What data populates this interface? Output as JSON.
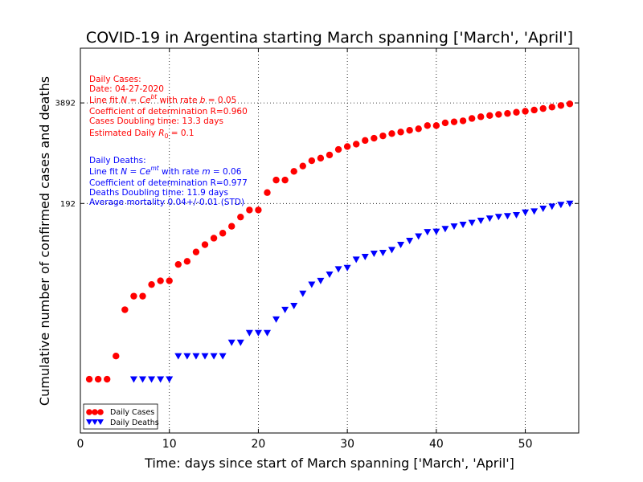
{
  "chart_data": {
    "type": "scatter",
    "title": "COVID-19 in Argentina starting March spanning ['March', 'April']",
    "xlabel": "Time: days since start of March spanning ['March', 'April']",
    "ylabel": "Cumulative number of confirmed cases and deaths",
    "xlim": [
      0,
      56
    ],
    "xticks": [
      0,
      10,
      20,
      30,
      40,
      50
    ],
    "yscale": "log",
    "ylim": [
      0.2,
      20000
    ],
    "yticks": [
      192,
      3892
    ],
    "grid": "dotted",
    "legend_position": "lower-left",
    "series": [
      {
        "name": "Daily Cases",
        "color": "#ff0000",
        "marker": "circle",
        "x": [
          1,
          2,
          3,
          4,
          5,
          6,
          7,
          8,
          9,
          10,
          11,
          12,
          13,
          14,
          15,
          16,
          17,
          18,
          19,
          20,
          21,
          22,
          23,
          24,
          25,
          26,
          27,
          28,
          29,
          30,
          31,
          32,
          33,
          34,
          35,
          36,
          37,
          38,
          39,
          40,
          41,
          42,
          43,
          44,
          45,
          46,
          47,
          48,
          49,
          50,
          51,
          52,
          53,
          54,
          55
        ],
        "y": [
          1,
          1,
          1,
          2,
          8,
          12,
          12,
          17,
          19,
          19,
          31,
          34,
          45,
          56,
          68,
          79,
          97,
          128,
          158,
          158,
          266,
          387,
          387,
          502,
          589,
          690,
          745,
          820,
          966,
          1054,
          1133,
          1265,
          1353,
          1451,
          1554,
          1628,
          1715,
          1795,
          1975,
          1975,
          2142,
          2208,
          2277,
          2443,
          2571,
          2669,
          2758,
          2839,
          2941,
          3031,
          3144,
          3288,
          3435,
          3607,
          3780
        ]
      },
      {
        "name": "Daily Deaths",
        "color": "#0000ff",
        "marker": "triangle-down",
        "x": [
          6,
          7,
          8,
          9,
          10,
          11,
          12,
          13,
          14,
          15,
          16,
          17,
          18,
          19,
          20,
          21,
          22,
          23,
          24,
          25,
          26,
          27,
          28,
          29,
          30,
          31,
          32,
          33,
          34,
          35,
          36,
          37,
          38,
          39,
          40,
          41,
          42,
          43,
          44,
          45,
          46,
          47,
          48,
          49,
          50,
          51,
          52,
          53,
          54,
          55
        ],
        "y": [
          1,
          1,
          1,
          1,
          1,
          2,
          2,
          2,
          2,
          2,
          2,
          3,
          3,
          4,
          4,
          4,
          6,
          8,
          9,
          13,
          17,
          19,
          23,
          27,
          28,
          36,
          39,
          43,
          44,
          48,
          56,
          63,
          72,
          82,
          83,
          90,
          97,
          102,
          108,
          115,
          123,
          129,
          132,
          136,
          147,
          152,
          165,
          176,
          185,
          192
        ]
      }
    ],
    "annotations": {
      "cases": [
        "Daily Cases:",
        "Date: 04-27-2020",
        "Line fit N = Ce^{bt}  with rate b = 0.05",
        "Coefficient of determination R=0.960",
        "Cases Doubling time: 13.3 days",
        "Estimated Daily R_0 = 0.1"
      ],
      "deaths": [
        "Daily Deaths:",
        "Line fit N = Ce^{mt}  with rate m = 0.06",
        "Coefficient of determination R=0.977",
        "Deaths Doubling time: 11.9 days",
        "Average mortality 0.04+/-0.01 (STD)"
      ]
    }
  }
}
